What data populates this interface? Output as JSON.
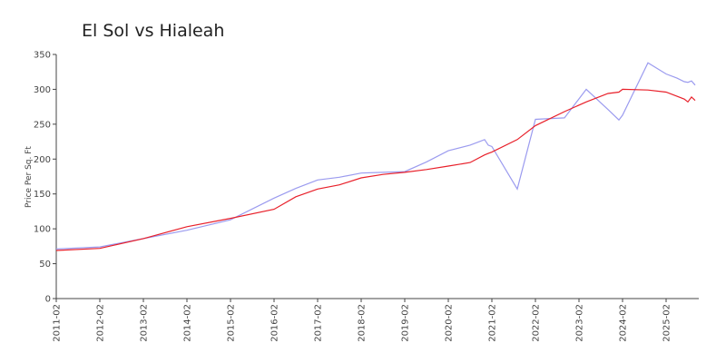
{
  "chart_data": {
    "type": "line",
    "title": "El Sol vs Hialeah",
    "y_label": "Price Per Sq. Ft",
    "x": [
      "2011-02",
      "2012-02",
      "2013-02",
      "2014-02",
      "2015-02",
      "2016-02",
      "2016-08",
      "2017-02",
      "2017-08",
      "2018-02",
      "2018-08",
      "2019-02",
      "2019-08",
      "2020-02",
      "2020-08",
      "2020-12",
      "2021-01",
      "2021-02",
      "2021-09",
      "2022-02",
      "2022-10",
      "2023-04",
      "2023-10",
      "2024-01",
      "2024-02",
      "2024-09",
      "2025-02",
      "2025-05",
      "2025-07",
      "2025-08",
      "2025-09",
      "2025-10"
    ],
    "series": [
      {
        "name": "El Sol",
        "color": "#9b9bef",
        "values": [
          71,
          74,
          86,
          98,
          113,
          144,
          158,
          170,
          174,
          180,
          181,
          182,
          196,
          212,
          220,
          228,
          220,
          218,
          157,
          257,
          259,
          300,
          271,
          256,
          263,
          338,
          322,
          316,
          311,
          310,
          312,
          306
        ]
      },
      {
        "name": "Hialeah",
        "color": "#e8202a",
        "values": [
          69,
          72,
          86,
          103,
          115,
          128,
          146,
          157,
          163,
          173,
          178,
          181,
          185,
          190,
          195,
          206,
          208,
          210,
          228,
          248,
          268,
          282,
          294,
          296,
          300,
          299,
          296,
          290,
          286,
          282,
          289,
          284
        ]
      }
    ],
    "xlim": [
      "2011-02",
      "2025-11"
    ],
    "xticks": [
      "2011-02",
      "2012-02",
      "2013-02",
      "2014-02",
      "2015-02",
      "2016-02",
      "2017-02",
      "2018-02",
      "2019-02",
      "2020-02",
      "2021-02",
      "2022-02",
      "2023-02",
      "2024-02",
      "2025-02"
    ],
    "ylim": [
      0,
      350
    ],
    "yticks": [
      0,
      50,
      100,
      150,
      200,
      250,
      300,
      350
    ]
  }
}
